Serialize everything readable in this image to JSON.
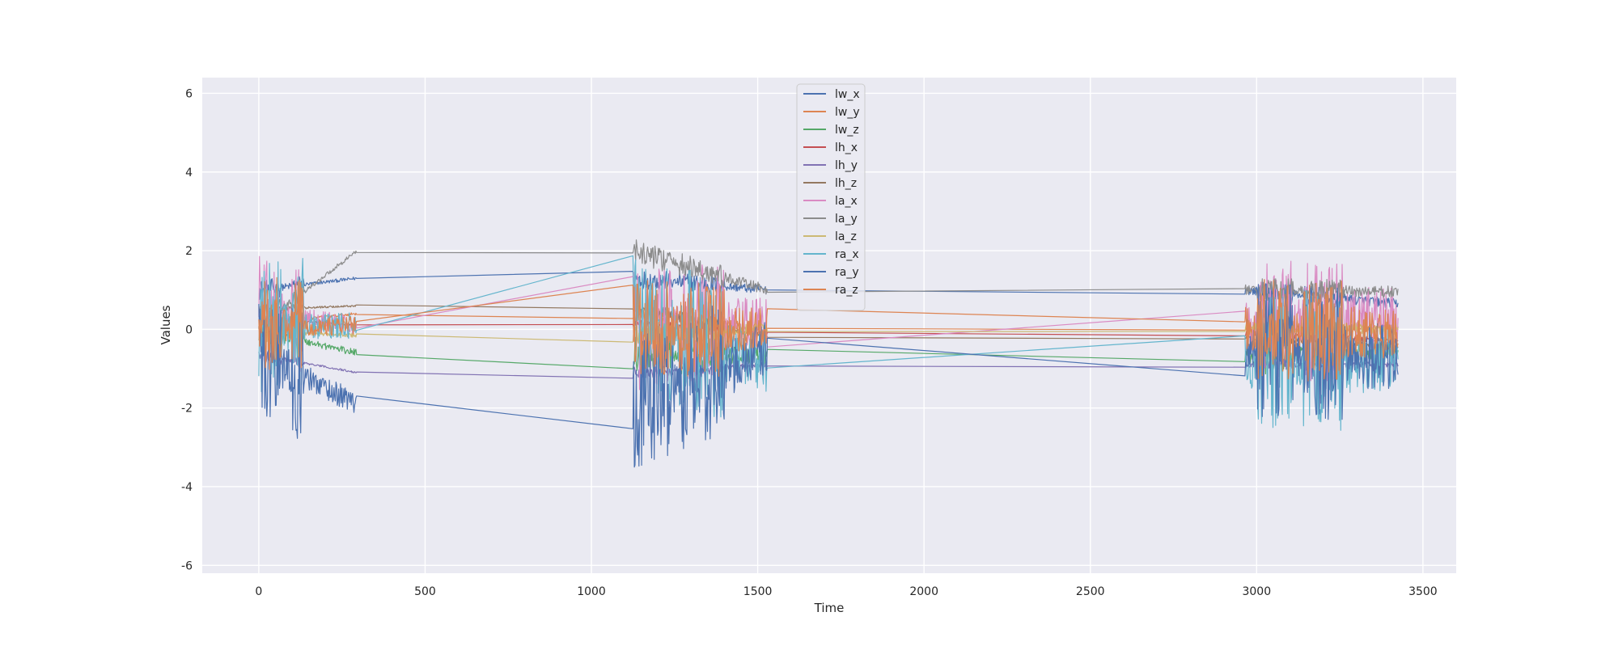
{
  "chart_data": {
    "type": "line",
    "title": "",
    "xlabel": "Time",
    "ylabel": "Values",
    "xlim": [
      -170,
      3600
    ],
    "ylim": [
      -6.2,
      6.4
    ],
    "xticks": [
      0,
      500,
      1000,
      1500,
      2000,
      2500,
      3000,
      3500
    ],
    "yticks": [
      -6,
      -4,
      -2,
      0,
      2,
      4,
      6
    ],
    "grid": true,
    "legend": "top-center",
    "segments": [
      {
        "x_start": 0,
        "x_end": 295
      },
      {
        "x_start": 1125,
        "x_end": 1530
      },
      {
        "x_start": 2965,
        "x_end": 3425
      }
    ],
    "series": [
      {
        "name": "lw_x",
        "color": "#4c72b0",
        "amp": 0.25,
        "endpoints": [
          1.0,
          1.3,
          1.0,
          0.65
        ]
      },
      {
        "name": "lw_y",
        "color": "#dd8452",
        "amp": 0.2,
        "endpoints": [
          0.15,
          0.4,
          0.0,
          0.05
        ]
      },
      {
        "name": "lw_z",
        "color": "#55a868",
        "amp": 0.5,
        "endpoints": [
          -0.05,
          -0.6,
          -0.7,
          -0.5
        ]
      },
      {
        "name": "lh_x",
        "color": "#c44e52",
        "amp": 0.15,
        "endpoints": [
          0.3,
          0.1,
          -0.1,
          -0.3
        ]
      },
      {
        "name": "lh_y",
        "color": "#8172b3",
        "amp": 0.15,
        "endpoints": [
          -0.65,
          -1.1,
          -0.9,
          -0.9
        ]
      },
      {
        "name": "lh_z",
        "color": "#937860",
        "amp": 0.15,
        "endpoints": [
          0.5,
          0.6,
          -0.2,
          -0.45
        ]
      },
      {
        "name": "la_x",
        "color": "#da8bc3",
        "amp": 1.6,
        "endpoints": [
          0.45,
          0.05,
          0.1,
          0.3
        ]
      },
      {
        "name": "la_y",
        "color": "#8c8c8c",
        "amp": 0.3,
        "endpoints": [
          0.05,
          2.0,
          1.0,
          0.95
        ]
      },
      {
        "name": "la_z",
        "color": "#ccb974",
        "amp": 0.3,
        "endpoints": [
          -0.05,
          -0.15,
          0.05,
          0.0
        ]
      },
      {
        "name": "ra_x",
        "color": "#64b5cd",
        "amp": 1.8,
        "endpoints": [
          0.05,
          0.1,
          -0.8,
          -0.75
        ]
      },
      {
        "name": "ra_y",
        "color": "#4c72b0",
        "amp": 1.7,
        "endpoints": [
          -0.6,
          -1.9,
          -0.5,
          -0.7
        ]
      },
      {
        "name": "ra_z",
        "color": "#dd8452",
        "amp": 1.3,
        "endpoints": [
          0.05,
          0.1,
          0.0,
          -0.1
        ]
      }
    ]
  }
}
